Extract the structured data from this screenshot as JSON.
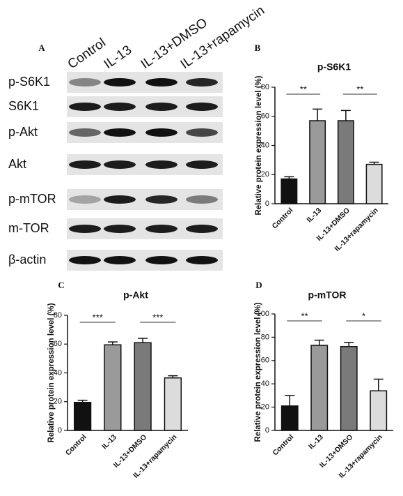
{
  "panel_a": {
    "label": "A",
    "lanes": [
      "Control",
      "IL-13",
      "IL-13+DMSO",
      "IL-13+rapamycin"
    ],
    "rows": [
      "p-S6K1",
      "S6K1",
      "p-Akt",
      "Akt",
      "p-mTOR",
      "m-TOR",
      "β-actin"
    ]
  },
  "chart_data": [
    {
      "type": "bar",
      "panel": "B",
      "title": "p-S6K1",
      "ylabel": "Relative protein expression level (%)",
      "categories": [
        "Control",
        "IL-13",
        "IL-13+DMSO",
        "IL-13+rapamycin"
      ],
      "values": [
        17,
        57,
        57,
        27
      ],
      "errors": [
        1.5,
        8,
        7,
        1.5
      ],
      "colors": [
        "#111111",
        "#9a9a9a",
        "#7a7a7a",
        "#dcdcdc"
      ],
      "ylim": [
        0,
        80
      ],
      "yticks": [
        0,
        20,
        40,
        60,
        80
      ],
      "significance": [
        "**",
        "**"
      ]
    },
    {
      "type": "bar",
      "panel": "C",
      "title": "p-Akt",
      "ylabel": "Relative protein expression level (%)",
      "categories": [
        "Control",
        "IL-13",
        "IL-13+DMSO",
        "IL-13+rapamycin"
      ],
      "values": [
        19.5,
        59.5,
        61,
        36.5
      ],
      "errors": [
        1.5,
        2,
        3,
        1.5
      ],
      "colors": [
        "#111111",
        "#9a9a9a",
        "#7a7a7a",
        "#dcdcdc"
      ],
      "ylim": [
        0,
        80
      ],
      "yticks": [
        0,
        20,
        40,
        60,
        80
      ],
      "significance": [
        "***",
        "***"
      ]
    },
    {
      "type": "bar",
      "panel": "D",
      "title": "p-mTOR",
      "ylabel": "Relative protein expression level (%)",
      "categories": [
        "Control",
        "IL-13",
        "IL-13+DMSO",
        "IL-13+rapamycin"
      ],
      "values": [
        21,
        73,
        72,
        34
      ],
      "errors": [
        9,
        4.5,
        3.5,
        10
      ],
      "colors": [
        "#111111",
        "#9a9a9a",
        "#7a7a7a",
        "#dcdcdc"
      ],
      "ylim": [
        0,
        100
      ],
      "yticks": [
        0,
        20,
        40,
        60,
        80,
        100
      ],
      "significance": [
        "**",
        "*"
      ]
    }
  ]
}
